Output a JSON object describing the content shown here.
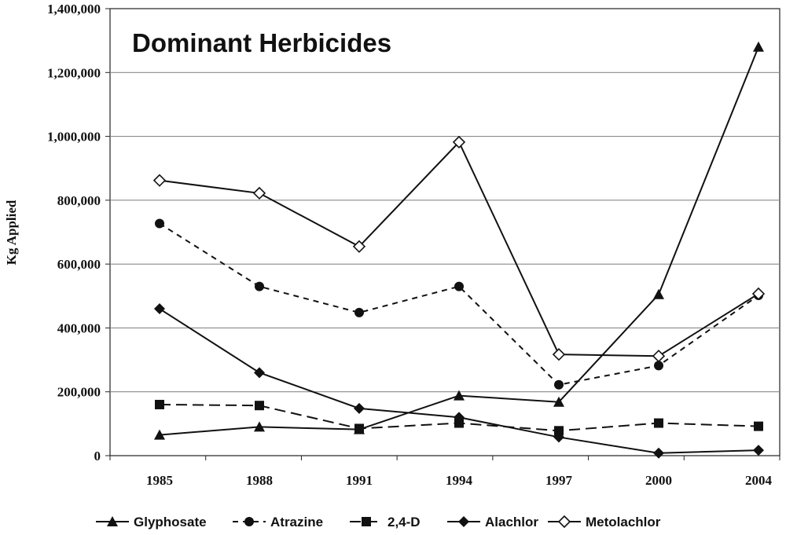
{
  "chart_data": {
    "type": "line",
    "title": "Dominant Herbicides",
    "xlabel": "",
    "ylabel": "Kg Applied",
    "categories": [
      "1985",
      "1988",
      "1991",
      "1994",
      "1997",
      "2000",
      "2004"
    ],
    "y_tick_labels": [
      "0",
      "200,000",
      "400,000",
      "600,000",
      "800,000",
      "1,000,000",
      "1,200,000",
      "1,400,000"
    ],
    "ylim": [
      0,
      1400000
    ],
    "grid": "horizontal",
    "legend_position": "bottom",
    "series": [
      {
        "name": "Glyphosate",
        "marker": "triangle",
        "dash": "solid",
        "values": [
          65000,
          90000,
          82000,
          188000,
          168000,
          505000,
          1280000
        ]
      },
      {
        "name": "Atrazine",
        "marker": "circle",
        "dash": "dashed",
        "values": [
          727000,
          530000,
          448000,
          530000,
          222000,
          282000,
          502000
        ]
      },
      {
        "name": "2,4-D",
        "marker": "square",
        "dash": "longdash",
        "values": [
          160000,
          157000,
          85000,
          102000,
          78000,
          102000,
          92000
        ]
      },
      {
        "name": "Alachlor",
        "marker": "diamond",
        "dash": "solid",
        "values": [
          460000,
          260000,
          148000,
          120000,
          58000,
          8000,
          17000
        ]
      },
      {
        "name": "Metolachlor",
        "marker": "diamond-open",
        "dash": "solid",
        "values": [
          862000,
          822000,
          655000,
          982000,
          317000,
          312000,
          507000
        ]
      }
    ]
  }
}
